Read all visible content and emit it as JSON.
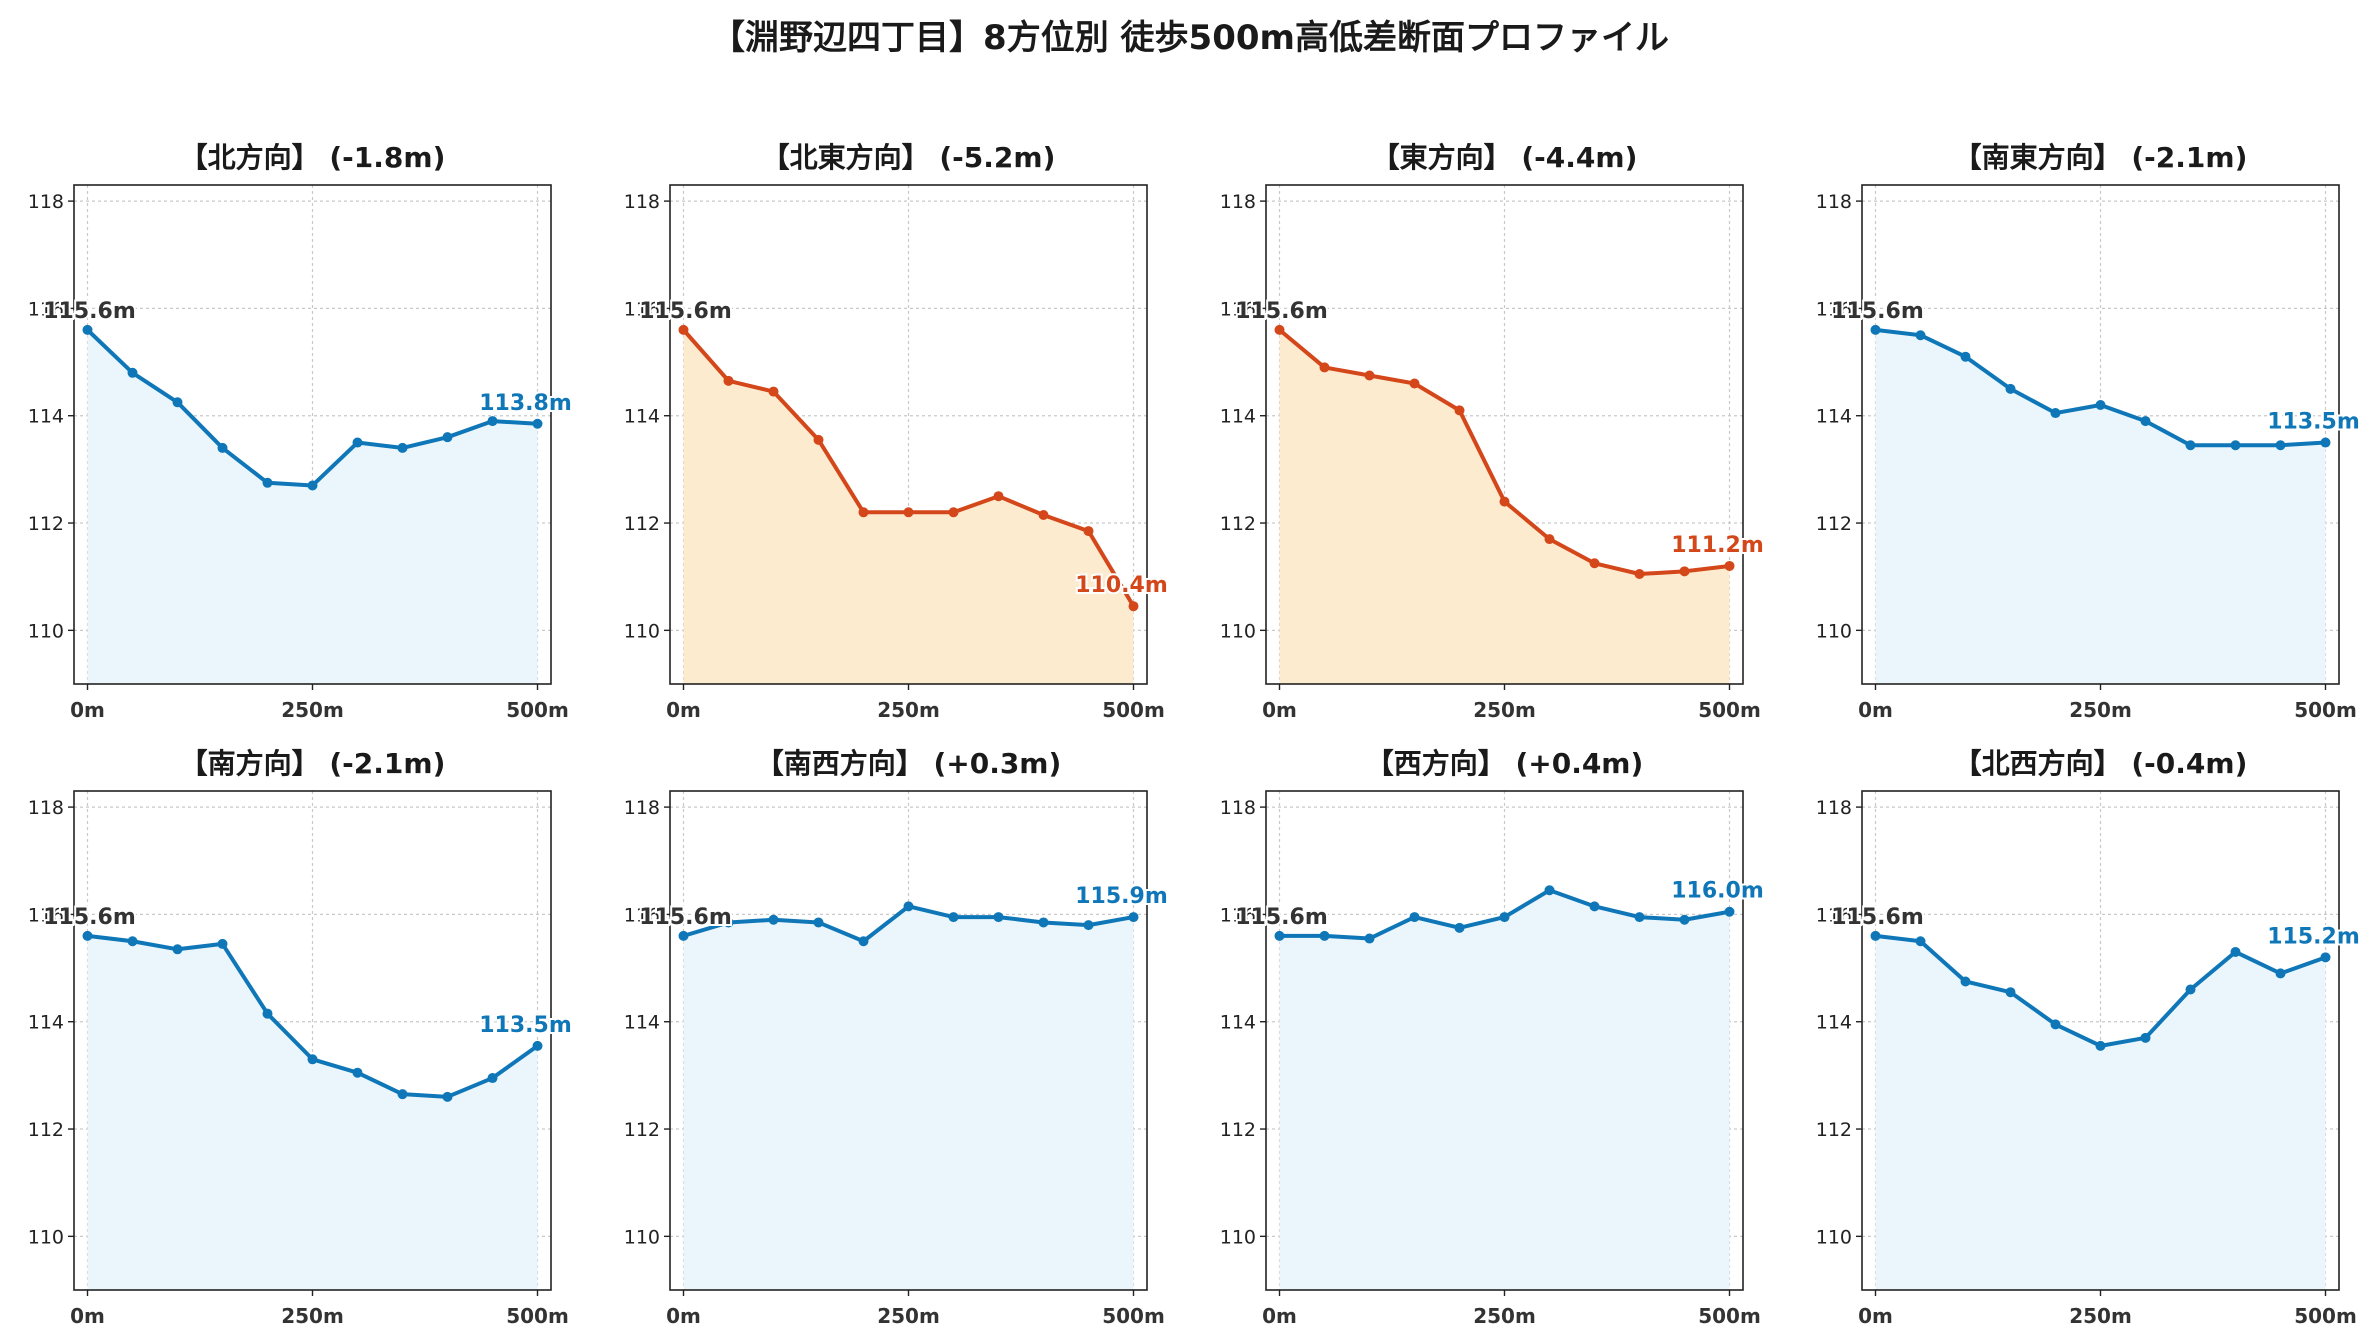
{
  "title": "【淵野辺四丁目】8方位別 徒歩500m高低差断面プロファイル",
  "colors": {
    "down": "#d4471a",
    "down_fill": "#fdebd0",
    "flat": "#0f77b8",
    "flat_fill": "#eaf6fc",
    "start": "#333333"
  },
  "chart_data": [
    {
      "type": "area",
      "title": "【北方向】 (-1.8m)",
      "tone": "flat",
      "x": [
        0,
        50,
        100,
        150,
        200,
        250,
        300,
        350,
        400,
        450,
        500
      ],
      "y": [
        115.6,
        114.8,
        114.25,
        113.4,
        112.75,
        112.7,
        113.5,
        113.4,
        113.6,
        113.9,
        113.85
      ],
      "start_label": "115.6m",
      "end_label": "113.8m",
      "xticks": [
        "0m",
        "250m",
        "500m"
      ],
      "yticks": [
        110,
        112,
        114,
        116,
        118
      ],
      "ylim": [
        109,
        118.3
      ],
      "grid": true
    },
    {
      "type": "area",
      "title": "【北東方向】 (-5.2m)",
      "tone": "down",
      "x": [
        0,
        50,
        100,
        150,
        200,
        250,
        300,
        350,
        400,
        450,
        500
      ],
      "y": [
        115.6,
        114.65,
        114.45,
        113.55,
        112.2,
        112.2,
        112.2,
        112.5,
        112.15,
        111.85,
        110.45
      ],
      "start_label": "115.6m",
      "end_label": "110.4m",
      "xticks": [
        "0m",
        "250m",
        "500m"
      ],
      "yticks": [
        110,
        112,
        114,
        116,
        118
      ],
      "ylim": [
        109,
        118.3
      ],
      "grid": true
    },
    {
      "type": "area",
      "title": "【東方向】 (-4.4m)",
      "tone": "down",
      "x": [
        0,
        50,
        100,
        150,
        200,
        250,
        300,
        350,
        400,
        450,
        500
      ],
      "y": [
        115.6,
        114.9,
        114.75,
        114.6,
        114.1,
        112.4,
        111.7,
        111.25,
        111.05,
        111.1,
        111.2
      ],
      "start_label": "115.6m",
      "end_label": "111.2m",
      "xticks": [
        "0m",
        "250m",
        "500m"
      ],
      "yticks": [
        110,
        112,
        114,
        116,
        118
      ],
      "ylim": [
        109,
        118.3
      ],
      "grid": true
    },
    {
      "type": "area",
      "title": "【南東方向】 (-2.1m)",
      "tone": "flat",
      "x": [
        0,
        50,
        100,
        150,
        200,
        250,
        300,
        350,
        400,
        450,
        500
      ],
      "y": [
        115.6,
        115.5,
        115.1,
        114.5,
        114.05,
        114.2,
        113.9,
        113.45,
        113.45,
        113.45,
        113.5
      ],
      "start_label": "115.6m",
      "end_label": "113.5m",
      "xticks": [
        "0m",
        "250m",
        "500m"
      ],
      "yticks": [
        110,
        112,
        114,
        116,
        118
      ],
      "ylim": [
        109,
        118.3
      ],
      "grid": true
    },
    {
      "type": "area",
      "title": "【南方向】 (-2.1m)",
      "tone": "flat",
      "x": [
        0,
        50,
        100,
        150,
        200,
        250,
        300,
        350,
        400,
        450,
        500
      ],
      "y": [
        115.6,
        115.5,
        115.35,
        115.45,
        114.15,
        113.3,
        113.05,
        112.65,
        112.6,
        112.95,
        113.55
      ],
      "start_label": "115.6m",
      "end_label": "113.5m",
      "xticks": [
        "0m",
        "250m",
        "500m"
      ],
      "yticks": [
        110,
        112,
        114,
        116,
        118
      ],
      "ylim": [
        109,
        118.3
      ],
      "grid": true
    },
    {
      "type": "area",
      "title": "【南西方向】 (+0.3m)",
      "tone": "flat",
      "x": [
        0,
        50,
        100,
        150,
        200,
        250,
        300,
        350,
        400,
        450,
        500
      ],
      "y": [
        115.6,
        115.85,
        115.9,
        115.85,
        115.5,
        116.15,
        115.95,
        115.95,
        115.85,
        115.8,
        115.95
      ],
      "start_label": "115.6m",
      "end_label": "115.9m",
      "xticks": [
        "0m",
        "250m",
        "500m"
      ],
      "yticks": [
        110,
        112,
        114,
        116,
        118
      ],
      "ylim": [
        109,
        118.3
      ],
      "grid": true
    },
    {
      "type": "area",
      "title": "【西方向】 (+0.4m)",
      "tone": "flat",
      "x": [
        0,
        50,
        100,
        150,
        200,
        250,
        300,
        350,
        400,
        450,
        500
      ],
      "y": [
        115.6,
        115.6,
        115.55,
        115.95,
        115.75,
        115.95,
        116.45,
        116.15,
        115.95,
        115.9,
        116.05
      ],
      "start_label": "115.6m",
      "end_label": "116.0m",
      "xticks": [
        "0m",
        "250m",
        "500m"
      ],
      "yticks": [
        110,
        112,
        114,
        116,
        118
      ],
      "ylim": [
        109,
        118.3
      ],
      "grid": true
    },
    {
      "type": "area",
      "title": "【北西方向】 (-0.4m)",
      "tone": "flat",
      "x": [
        0,
        50,
        100,
        150,
        200,
        250,
        300,
        350,
        400,
        450,
        500
      ],
      "y": [
        115.6,
        115.5,
        114.75,
        114.55,
        113.95,
        113.55,
        113.7,
        114.6,
        115.3,
        114.9,
        115.2
      ],
      "start_label": "115.6m",
      "end_label": "115.2m",
      "xticks": [
        "0m",
        "250m",
        "500m"
      ],
      "yticks": [
        110,
        112,
        114,
        116,
        118
      ],
      "ylim": [
        109,
        118.3
      ],
      "grid": true
    }
  ]
}
